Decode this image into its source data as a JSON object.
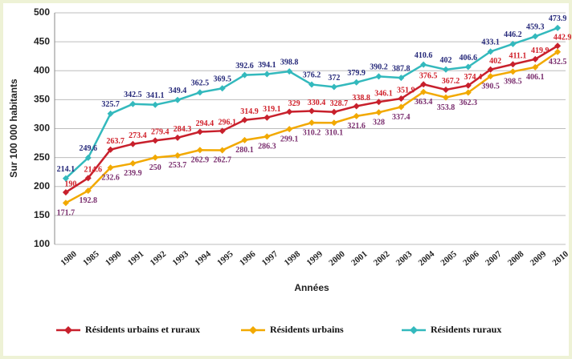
{
  "chart_data": {
    "type": "line",
    "y_label": "Sur 100 000 habitants",
    "x_label": "Années",
    "categories": [
      "1980",
      "1985",
      "1990",
      "1991",
      "1992",
      "1993",
      "1994",
      "1995",
      "1996",
      "1997",
      "1998",
      "1999",
      "2000",
      "2001",
      "2002",
      "2003",
      "2004",
      "2005",
      "2006",
      "2007",
      "2008",
      "2009",
      "2010"
    ],
    "series": [
      {
        "name": "Résidents urbains et ruraux",
        "color": "#c8202c",
        "label_color": "#d0202a",
        "values": [
          190,
          214.6,
          263.7,
          273.4,
          279.4,
          284.3,
          294.4,
          296.1,
          314.9,
          319.1,
          329,
          330.4,
          328.7,
          338.8,
          346.1,
          351.9,
          376.5,
          367.2,
          374.4,
          402,
          411.1,
          419.9,
          442.9
        ]
      },
      {
        "name": "Résidents urbains",
        "color": "#f2a900",
        "label_color": "#7a2e6e",
        "values": [
          171.7,
          192.8,
          232.6,
          239.9,
          250,
          253.7,
          262.9,
          262.7,
          280.1,
          286.3,
          299.1,
          310.2,
          310.1,
          321.6,
          328,
          337.4,
          363.4,
          353.8,
          362.3,
          390.5,
          398.5,
          406.1,
          432.5
        ]
      },
      {
        "name": "Résidents ruraux",
        "color": "#33b9bd",
        "label_color": "#26297a",
        "values": [
          214.1,
          249.6,
          325.7,
          342.5,
          341.1,
          349.4,
          362.5,
          369.5,
          392.6,
          394.1,
          398.8,
          376.2,
          372,
          379.9,
          390.2,
          387.8,
          410.6,
          402,
          406.6,
          433.1,
          446.2,
          459.3,
          473.9
        ]
      }
    ],
    "ylim": [
      100,
      500
    ],
    "yticks": [
      100,
      150,
      200,
      250,
      300,
      350,
      400,
      450,
      500
    ],
    "grid": true,
    "legend": "bottom"
  }
}
